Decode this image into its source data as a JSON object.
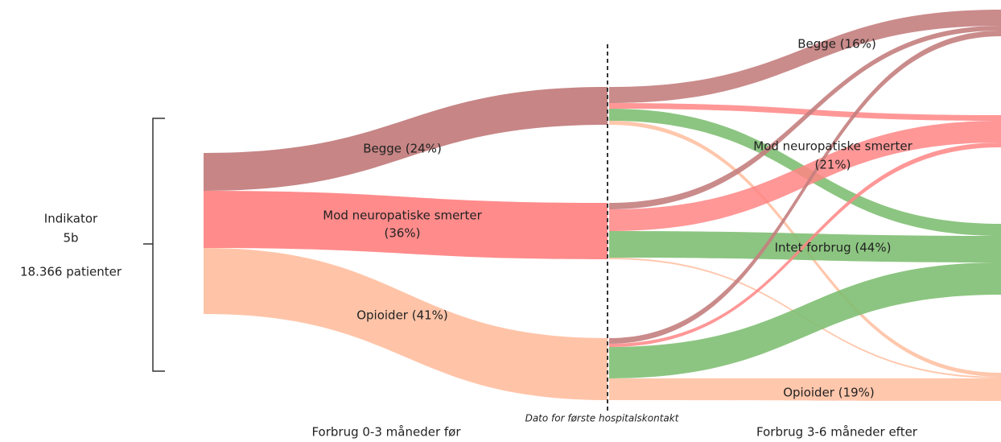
{
  "indicator": {
    "title": "Indikator",
    "code": "5b",
    "patients": "18.366 patienter"
  },
  "left_nodes": [
    {
      "label": "Begge (24%)"
    },
    {
      "label": "Mod neuropatiske smerter",
      "share": "(36%)"
    },
    {
      "label": "Opioider (41%)"
    }
  ],
  "right_nodes": [
    {
      "label": "Begge (16%)"
    },
    {
      "label": "Mod neuropatiske smerter",
      "share": "(21%)"
    },
    {
      "label": "Intet forbrug (44%)"
    },
    {
      "label": "Opioider (19%)"
    }
  ],
  "axis_labels": {
    "before": "Forbrug 0-3 måneder før",
    "divider": "Dato for første hospitalskontakt",
    "after": "Forbrug 3-6 måneder efter"
  }
}
